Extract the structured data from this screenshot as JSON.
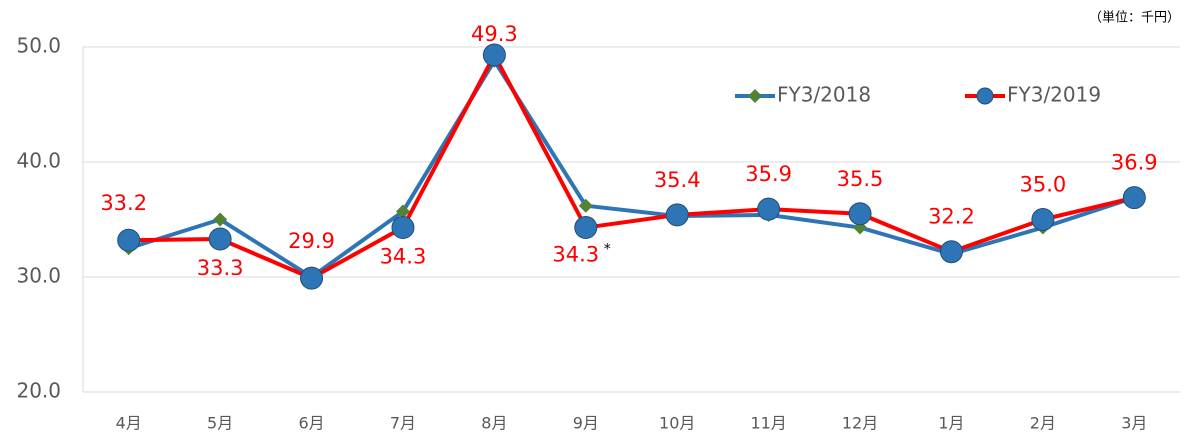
{
  "chart_data": {
    "type": "line",
    "unit_label": "（単位：千円）",
    "categories": [
      "4月",
      "5月",
      "6月",
      "7月",
      "8月",
      "9月",
      "10月",
      "11月",
      "12月",
      "1月",
      "2月",
      "3月"
    ],
    "series": [
      {
        "name": "FY3/2018",
        "color": "#2e75b6",
        "marker_color": "#548235",
        "marker": "diamond",
        "values": [
          32.5,
          35.0,
          30.0,
          35.7,
          48.8,
          36.2,
          35.3,
          35.4,
          34.3,
          32.0,
          34.3,
          36.9
        ]
      },
      {
        "name": "FY3/2019",
        "color": "#ff0000",
        "marker_color": "#2e75b6",
        "marker": "circle",
        "values": [
          33.2,
          33.3,
          29.9,
          34.3,
          49.3,
          34.3,
          35.4,
          35.9,
          35.5,
          32.2,
          35.0,
          36.9
        ],
        "value_labels": [
          "33.2",
          "33.3",
          "29.9",
          "34.3",
          "49.3",
          "34.3",
          "35.4",
          "35.9",
          "35.5",
          "32.2",
          "35.0",
          "36.9"
        ]
      }
    ],
    "annotation": "*",
    "ylim": [
      20,
      50
    ],
    "yticks": [
      {
        "value": 20,
        "label": "20.0"
      },
      {
        "value": 30,
        "label": "30.0"
      },
      {
        "value": 40,
        "label": "40.0"
      },
      {
        "value": 50,
        "label": "50.0"
      }
    ],
    "grid": true
  }
}
